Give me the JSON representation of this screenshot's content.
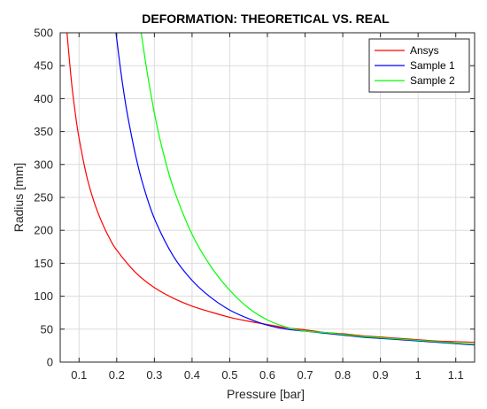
{
  "chart_data": {
    "type": "line",
    "title": "DEFORMATION: THEORETICAL VS. REAL",
    "xlabel": "Pressure [bar]",
    "ylabel": "Radius [mm]",
    "xlim": [
      0.05,
      1.15
    ],
    "ylim": [
      0,
      500
    ],
    "xticks": [
      0.1,
      0.2,
      0.3,
      0.4,
      0.5,
      0.6,
      0.7,
      0.8,
      0.9,
      1,
      1.1
    ],
    "xtick_labels": [
      "0.1",
      "0.2",
      "0.3",
      "0.4",
      "0.5",
      "0.6",
      "0.7",
      "0.8",
      "0.9",
      "1",
      "1.1"
    ],
    "yticks": [
      0,
      50,
      100,
      150,
      200,
      250,
      300,
      350,
      400,
      450,
      500
    ],
    "ytick_labels": [
      "0",
      "50",
      "100",
      "150",
      "200",
      "250",
      "300",
      "350",
      "400",
      "450",
      "500"
    ],
    "grid": true,
    "legend_position": "top-right",
    "series": [
      {
        "name": "Ansys",
        "color": "#ff0000",
        "x": [
          0.068,
          0.08,
          0.09,
          0.1,
          0.12,
          0.14,
          0.16,
          0.18,
          0.2,
          0.25,
          0.3,
          0.35,
          0.4,
          0.45,
          0.5,
          0.55,
          0.6,
          0.65,
          0.7,
          0.75,
          0.8,
          0.85,
          0.9,
          0.95,
          1.0,
          1.05,
          1.1,
          1.15
        ],
        "y": [
          500,
          425,
          378,
          340,
          283,
          243,
          213,
          189,
          170,
          136,
          113,
          97,
          85,
          76,
          68,
          62,
          57,
          52,
          49,
          45,
          43,
          40,
          38,
          36,
          34,
          32,
          31,
          30
        ]
      },
      {
        "name": "Sample 1",
        "color": "#0000ff",
        "x": [
          0.198,
          0.21,
          0.22,
          0.23,
          0.25,
          0.27,
          0.3,
          0.35,
          0.4,
          0.45,
          0.5,
          0.55,
          0.6,
          0.65,
          0.7,
          0.75,
          0.8,
          0.85,
          0.9,
          0.95,
          1.0,
          1.05,
          1.1,
          1.15
        ],
        "y": [
          500,
          445,
          405,
          371,
          314,
          269,
          218,
          161,
          124,
          98,
          79,
          66,
          56,
          50,
          47,
          44,
          41,
          38,
          36,
          34,
          32,
          30,
          28,
          26
        ]
      },
      {
        "name": "Sample 2",
        "color": "#00ff00",
        "x": [
          0.265,
          0.28,
          0.3,
          0.32,
          0.35,
          0.4,
          0.45,
          0.5,
          0.55,
          0.6,
          0.65,
          0.7,
          0.75,
          0.8,
          0.85,
          0.9,
          0.95,
          1.0,
          1.05,
          1.1,
          1.15
        ],
        "y": [
          500,
          443,
          378,
          326,
          265,
          194,
          145,
          109,
          82,
          64,
          53,
          47,
          45,
          42,
          39,
          37,
          35,
          33,
          31,
          29,
          27
        ]
      }
    ]
  }
}
